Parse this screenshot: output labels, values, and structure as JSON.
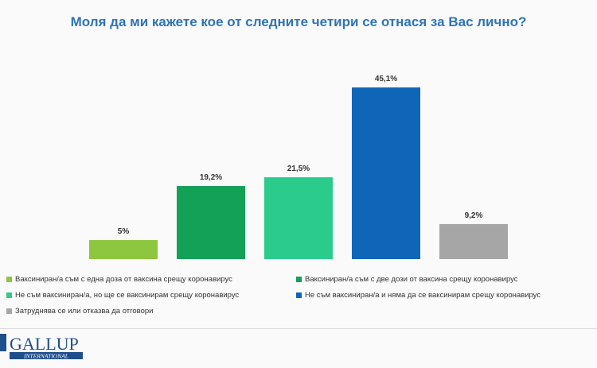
{
  "title": "Моля да ми кажете кое от следните четири се отнася за Вас лично?",
  "chart_data": {
    "type": "bar",
    "title": "Моля да ми кажете кое от следните четири се отнася за Вас лично?",
    "categories": [
      "Ваксиниран/а съм с една доза от ваксина срещу коронавирус",
      "Ваксиниран/а съм с две дози от ваксина срещу коронавирус",
      "Не съм ваксиниран/а, но ще се ваксинирам срещу коронавирус",
      "Не съм ваксиниран/а и няма да се ваксинирам срещу коронавирус",
      "Затруднява се или отказва да отговори"
    ],
    "values": [
      5,
      19.2,
      21.5,
      45.1,
      9.2
    ],
    "labels": [
      "5%",
      "19,2%",
      "21,5%",
      "45,1%",
      "9,2%"
    ],
    "colors": [
      "#8dc63f",
      "#12a155",
      "#2bcb8c",
      "#0f66b8",
      "#a6a6a6"
    ],
    "ylim": [
      0,
      50
    ],
    "grid": false,
    "legend_position": "bottom"
  },
  "logo": {
    "text": "GALLUP",
    "subtext": "INTERNATIONAL"
  }
}
